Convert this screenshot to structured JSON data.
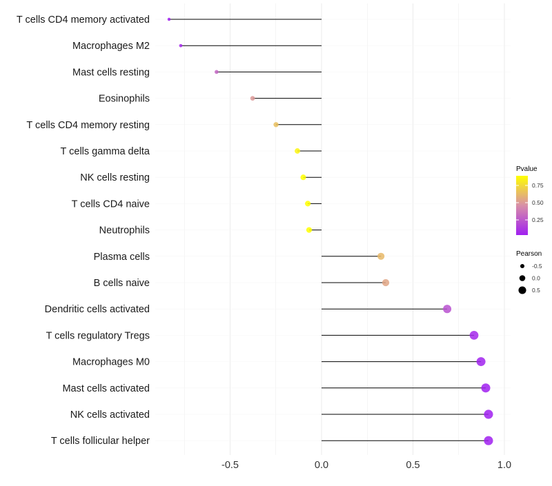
{
  "chart_data": {
    "type": "lollipop",
    "title": "",
    "xlabel": "",
    "ylabel": "",
    "xlim": [
      -0.9,
      1.02
    ],
    "x_ticks": [
      -0.5,
      0.0,
      0.5,
      1.0
    ],
    "x_tick_labels": [
      "-0.5",
      "0.0",
      "0.5",
      "1.0"
    ],
    "grid": true,
    "categories": [
      "T cells CD4 memory activated",
      "Macrophages M2",
      "Mast cells resting",
      "Eosinophils",
      "T cells CD4 memory resting",
      "T cells gamma delta",
      "NK cells resting",
      "T cells CD4 naive",
      "Neutrophils",
      "Plasma cells",
      "B cells naive",
      "Dendritic cells activated",
      "T cells regulatory  Tregs ",
      "Macrophages M0",
      "Mast cells activated",
      "NK cells activated",
      "T cells follicular helper"
    ],
    "values": [
      -0.834,
      -0.77,
      -0.574,
      -0.377,
      -0.249,
      -0.132,
      -0.1,
      -0.075,
      -0.068,
      0.325,
      0.351,
      0.687,
      0.834,
      0.872,
      0.898,
      0.913,
      0.913
    ],
    "pvalues": [
      0.02,
      0.06,
      0.3,
      0.5,
      0.65,
      0.85,
      0.95,
      0.98,
      0.99,
      0.62,
      0.55,
      0.22,
      0.06,
      0.04,
      0.03,
      0.02,
      0.02
    ],
    "legend": {
      "placement": "right",
      "color_title": "Pvalue",
      "color_ticks": [
        0.75,
        0.5,
        0.25
      ],
      "color_tick_labels": [
        "0.75",
        "0.50",
        "0.25"
      ],
      "color_range": [
        0.03,
        0.89
      ],
      "color_low": "#A020F0",
      "color_high": "#FFFF00",
      "size_title": "Pearson",
      "size_values": [
        -0.5,
        0.0,
        0.5
      ],
      "size_labels": [
        "-0.5",
        "0.0",
        "0.5"
      ]
    }
  }
}
